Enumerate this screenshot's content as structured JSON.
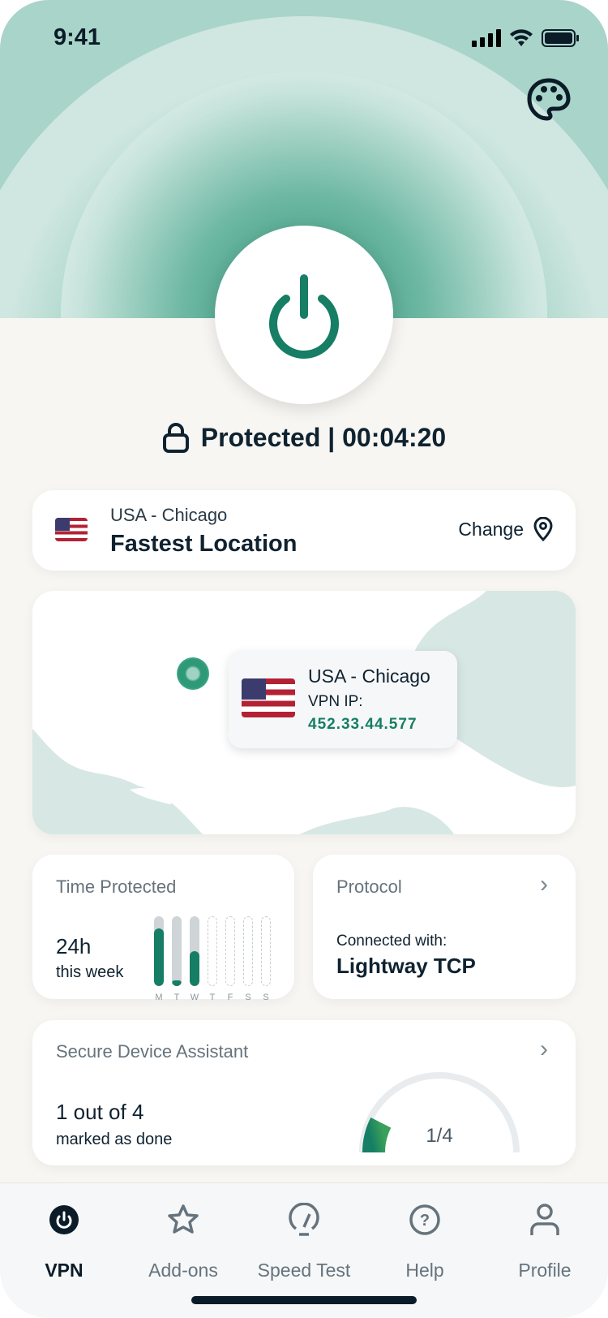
{
  "status_bar": {
    "time": "9:41"
  },
  "connection": {
    "status": "Protected | 00:04:20",
    "icons": [
      "lock-icon",
      "power-icon",
      "palette-icon"
    ]
  },
  "location": {
    "country_city": "USA - Chicago",
    "name": "Fastest Location",
    "change_label": "Change"
  },
  "map": {
    "location": "USA - Chicago",
    "ip_label": "VPN IP:",
    "ip": "452.33.44.577"
  },
  "time_protected": {
    "title": "Time Protected",
    "value": "24h",
    "subtitle": "this week",
    "days": [
      "M",
      "T",
      "W",
      "T",
      "F",
      "S",
      "S"
    ],
    "fill": [
      0.82,
      0.08,
      0.5,
      null,
      null,
      null,
      null
    ]
  },
  "protocol": {
    "title": "Protocol",
    "label": "Connected with:",
    "value": "Lightway TCP"
  },
  "assistant": {
    "title": "Secure Device Assistant",
    "value": "1 out of 4",
    "subtitle": "marked as done",
    "gauge_label": "1/4",
    "progress": 0.25
  },
  "tabs": [
    {
      "label": "VPN",
      "active": true
    },
    {
      "label": "Add-ons"
    },
    {
      "label": "Speed Test"
    },
    {
      "label": "Help"
    },
    {
      "label": "Profile"
    }
  ],
  "colors": {
    "accent": "#167e64",
    "text": "#0f2230",
    "muted": "#66737d"
  }
}
